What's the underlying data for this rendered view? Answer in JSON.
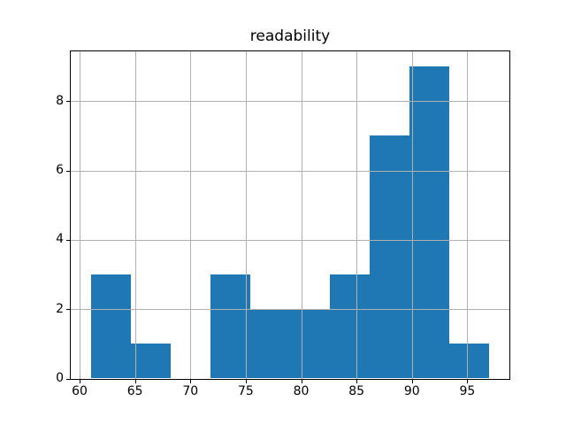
{
  "chart_data": {
    "type": "bar",
    "subtype": "histogram",
    "title": "readability",
    "xlabel": "",
    "ylabel": "",
    "bin_edges": [
      61.0,
      64.6,
      68.2,
      71.8,
      75.4,
      79.0,
      82.6,
      86.2,
      89.8,
      93.4,
      97.0
    ],
    "counts": [
      3,
      1,
      0,
      3,
      2,
      2,
      3,
      7,
      9,
      1
    ],
    "total_count": 31,
    "xlim": [
      59.2,
      98.8
    ],
    "ylim": [
      0,
      9.45
    ],
    "xticks": [
      60,
      65,
      70,
      75,
      80,
      85,
      90,
      95
    ],
    "yticks": [
      0,
      2,
      4,
      6,
      8
    ],
    "grid": true,
    "grid_above_bars": true,
    "legend": null,
    "colors": {
      "bar": "#1f77b4",
      "grid": "#b0b0b0",
      "spine": "#000000",
      "text": "#000000",
      "background": "#ffffff"
    }
  }
}
